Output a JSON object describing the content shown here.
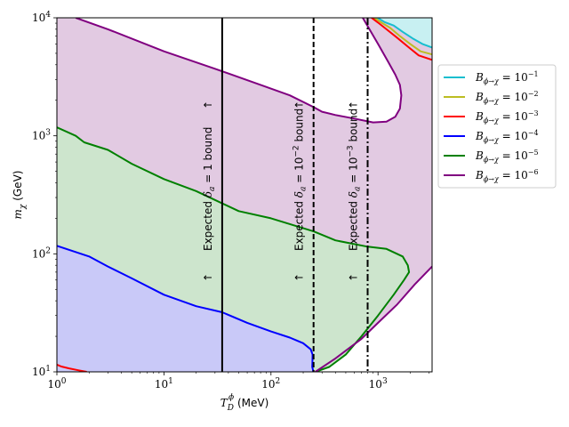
{
  "chart_data": {
    "type": "area",
    "xlabel": "T_D^ϕ (MeV)",
    "ylabel": "m_χ (GeV)",
    "xscale": "log",
    "yscale": "log",
    "xlim": [
      1,
      3200
    ],
    "ylim": [
      10,
      10000
    ],
    "x_ticks": [
      {
        "value": 1,
        "base": "10",
        "exp": "0"
      },
      {
        "value": 10,
        "base": "10",
        "exp": "1"
      },
      {
        "value": 100,
        "base": "10",
        "exp": "2"
      },
      {
        "value": 1000,
        "base": "10",
        "exp": "3"
      }
    ],
    "y_ticks": [
      {
        "value": 10,
        "base": "10",
        "exp": "1"
      },
      {
        "value": 100,
        "base": "10",
        "exp": "2"
      },
      {
        "value": 1000,
        "base": "10",
        "exp": "3"
      },
      {
        "value": 10000,
        "base": "10",
        "exp": "4"
      }
    ],
    "legend_position": "outside right, upper",
    "series": [
      {
        "name": "B_{ϕ→χ} = 10^{-1}",
        "label_main": "B",
        "label_sub": "ϕ→χ",
        "label_base": "= 10",
        "label_exp": "−1",
        "color": "#17becf",
        "fill": "#c8f0f2",
        "x": [
          990,
          1150,
          1400,
          1700,
          2100,
          2600,
          3200
        ],
        "y": [
          10000,
          9200,
          8600,
          7600,
          6700,
          6000,
          5600
        ]
      },
      {
        "name": "B_{ϕ→χ} = 10^{-2}",
        "label_main": "B",
        "label_sub": "ϕ→χ",
        "label_base": "= 10",
        "label_exp": "−2",
        "color": "#bcbd22",
        "fill": null,
        "x": [
          920,
          1100,
          1300,
          1600,
          2000,
          2500,
          3200
        ],
        "y": [
          10000,
          9000,
          8200,
          7000,
          6000,
          5200,
          4900
        ]
      },
      {
        "name": "B_{ϕ→χ} = 10^{-3}",
        "label_main": "B",
        "label_sub": "ϕ→χ",
        "label_base": "= 10",
        "label_exp": "−3",
        "color": "#ff0000",
        "fill": null,
        "x": [
          870,
          1000,
          1200,
          1500,
          1900,
          2400,
          3200
        ],
        "y": [
          10000,
          9100,
          8000,
          6800,
          5700,
          4800,
          4400
        ],
        "extra_x": [
          1,
          1.1,
          1.3,
          1.6,
          1.9
        ],
        "extra_y": [
          11.5,
          11.1,
          10.7,
          10.3,
          10
        ]
      },
      {
        "name": "B_{ϕ→χ} = 10^{-4}",
        "label_main": "B",
        "label_sub": "ϕ→χ",
        "label_base": "= 10",
        "label_exp": "−4",
        "color": "#0000ff",
        "fill": "#c9c9f8",
        "x": [
          1,
          2,
          3,
          5,
          10,
          20,
          35,
          60,
          100,
          150,
          200,
          235,
          245,
          244,
          243,
          246,
          248
        ],
        "y": [
          117,
          95,
          78,
          62,
          45,
          36,
          32,
          26,
          22,
          19.5,
          17.5,
          15.5,
          14,
          12,
          11,
          10.5,
          10
        ]
      },
      {
        "name": "B_{ϕ→χ} = 10^{-5}",
        "label_main": "B",
        "label_sub": "ϕ→χ",
        "label_base": "= 10",
        "label_exp": "−5",
        "color": "#008000",
        "fill": "#cde5cd",
        "x": [
          1,
          1.5,
          1.8,
          3,
          5,
          10,
          20,
          50,
          100,
          250,
          400,
          800,
          1200,
          1700,
          1900,
          1950,
          1750,
          1400,
          1000,
          700,
          500,
          350,
          260
        ],
        "y": [
          1180,
          1000,
          880,
          760,
          580,
          430,
          340,
          230,
          200,
          155,
          130,
          115,
          110,
          95,
          80,
          70,
          60,
          45,
          30,
          20,
          14,
          11,
          10
        ]
      },
      {
        "name": "B_{ϕ→χ} = 10^{-6}",
        "label_main": "B",
        "label_sub": "ϕ→χ",
        "label_base": "= 10",
        "label_exp": "−6",
        "color": "#800080",
        "fill": "#e2cae2",
        "x": [
          1.5,
          3,
          10,
          30,
          80,
          150,
          250,
          300,
          400,
          600,
          900,
          1200,
          1450,
          1600,
          1650,
          1600,
          1450,
          1250,
          1000,
          800,
          720
        ],
        "y": [
          10000,
          8000,
          5200,
          3700,
          2700,
          2200,
          1750,
          1600,
          1500,
          1400,
          1300,
          1320,
          1450,
          1700,
          2200,
          2700,
          3300,
          4200,
          6000,
          8500,
          10000
        ],
        "lower_x": [
          260,
          400,
          700,
          1000,
          1500,
          2200,
          3200
        ],
        "lower_y": [
          10,
          13,
          19,
          26,
          37,
          55,
          78
        ]
      }
    ],
    "vertical_lines": [
      {
        "x": 35,
        "style": "solid",
        "label": "Expected δ_a = 1 bound",
        "prefix": "Expected ",
        "sym": "δ",
        "sub": "a",
        "suffix": " = 1 bound",
        "sup": "",
        "arrow": "↑"
      },
      {
        "x": 250,
        "style": "dashed",
        "label": "Expected δ_a = 10^{-2} bound",
        "prefix": "Expected ",
        "sym": "δ",
        "sub": "a",
        "suffix": " = 10",
        "sup": "−2",
        "after": " bound",
        "arrow": "↑"
      },
      {
        "x": 800,
        "style": "dashdot",
        "label": "Expected δ_a = 10^{-3} bound",
        "prefix": "Expected ",
        "sym": "δ",
        "sub": "a",
        "suffix": " = 10",
        "sup": "−3",
        "after": " bound",
        "arrow": "↑"
      }
    ]
  }
}
